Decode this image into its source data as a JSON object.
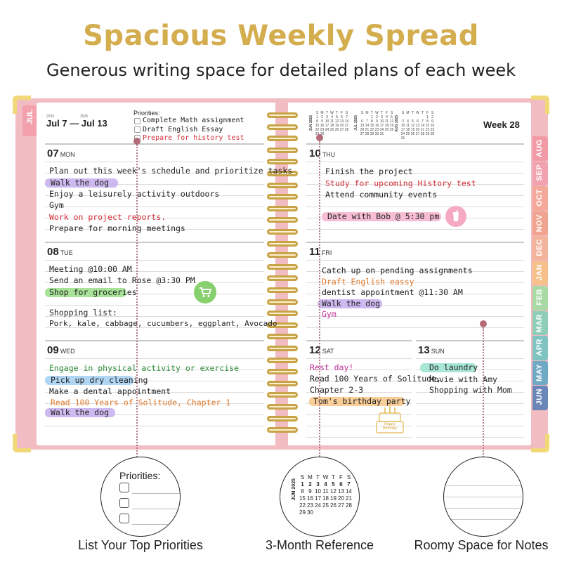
{
  "headline": "Spacious Weekly Spread",
  "subheadline": "Generous writing space for detailed plans of each week",
  "left_page": {
    "side_tab": "JUL",
    "year_a": "2025",
    "year_b": "2025",
    "date_range": "Jul 7 — Jul 13",
    "priorities": {
      "title": "Priorities:",
      "items": [
        "Complete Math assignment",
        "Draft English Essay",
        "Prepare for history test"
      ]
    },
    "days": [
      {
        "num": "07",
        "dow": "MON",
        "entries": [
          "Plan out this week's schedule and prioritize tasks",
          "Walk the dog",
          "Enjoy a leisurely activity outdoors",
          "Gym",
          "Work on project reports.",
          "Prepare for morning meetings"
        ]
      },
      {
        "num": "08",
        "dow": "TUE",
        "entries": [
          "Meeting @10:00 AM",
          "Send an email to Rose @3:30 PM",
          "Shop for groceries",
          "Shopping list:",
          "Pork, kale, cabbage, cucumbers, eggplant, Avocado"
        ]
      },
      {
        "num": "09",
        "dow": "WED",
        "entries": [
          "Engage in physical activity or exercise",
          "Pick up dry cleaning",
          "Make a dental appointment",
          "Read 100 Years of Solitude, Chapter 1",
          "Walk the dog"
        ]
      }
    ]
  },
  "right_page": {
    "week_label": "Week 28",
    "mini_calendars": [
      {
        "label": "JUN 2025",
        "head": [
          "S",
          "M",
          "T",
          "W",
          "T",
          "F",
          "S"
        ],
        "days": [
          "1",
          "2",
          "3",
          "4",
          "5",
          "6",
          "7",
          "8",
          "9",
          "10",
          "11",
          "12",
          "13",
          "14",
          "15",
          "16",
          "17",
          "18",
          "19",
          "20",
          "21",
          "22",
          "23",
          "24",
          "25",
          "26",
          "27",
          "28",
          "29",
          "30"
        ]
      },
      {
        "label": "JUL 2025",
        "head": [
          "S",
          "M",
          "T",
          "W",
          "T",
          "F",
          "S"
        ],
        "days": [
          "",
          "",
          "1",
          "2",
          "3",
          "4",
          "5",
          "6",
          "7",
          "8",
          "9",
          "10",
          "11",
          "12",
          "13",
          "14",
          "15",
          "16",
          "17",
          "18",
          "19",
          "20",
          "21",
          "22",
          "23",
          "24",
          "25",
          "26",
          "27",
          "28",
          "29",
          "30",
          "31"
        ]
      },
      {
        "label": "AUG 2025",
        "head": [
          "S",
          "M",
          "T",
          "W",
          "T",
          "F",
          "S"
        ],
        "days": [
          "",
          "",
          "",
          "",
          "",
          "1",
          "2",
          "3",
          "4",
          "5",
          "6",
          "7",
          "8",
          "9",
          "10",
          "11",
          "12",
          "13",
          "14",
          "15",
          "16",
          "17",
          "18",
          "19",
          "20",
          "21",
          "22",
          "23",
          "24",
          "25",
          "26",
          "27",
          "28",
          "29",
          "30",
          "31"
        ]
      }
    ],
    "days": [
      {
        "num": "10",
        "dow": "THU",
        "entries": [
          "Finish the project",
          "Study for upcoming History test",
          "Attend community events",
          "Date with Bob @ 5:30 pm"
        ]
      },
      {
        "num": "11",
        "dow": "FRI",
        "entries": [
          "Catch up on pending assignments",
          "Draft English eassy",
          "dentist appointment @11:30 AM",
          "Walk the dog",
          "Gym"
        ]
      },
      {
        "num": "12",
        "dow": "SAT",
        "entries": [
          "Rest day!",
          "Read 100 Years of Solitude,",
          "Chapter 2-3",
          "Tom's birthday party"
        ]
      },
      {
        "num": "13",
        "dow": "SUN",
        "entries": [
          "Do laundry",
          "Movie with Amy",
          "Shopping with Mom"
        ]
      }
    ],
    "cake_text": "Happy Birthday"
  },
  "month_tabs": [
    {
      "label": "AUG",
      "color": "#f29aa6"
    },
    {
      "label": "SEP",
      "color": "#f0a2b0"
    },
    {
      "label": "OCT",
      "color": "#f4a89a"
    },
    {
      "label": "NOV",
      "color": "#f0a48f"
    },
    {
      "label": "DEC",
      "color": "#f3b39a"
    },
    {
      "label": "JAN",
      "color": "#f6c089"
    },
    {
      "label": "FEB",
      "color": "#a9d9a4"
    },
    {
      "label": "MAR",
      "color": "#8ecdb8"
    },
    {
      "label": "APR",
      "color": "#7fc4c0"
    },
    {
      "label": "MAY",
      "color": "#6fa9c4"
    },
    {
      "label": "JUN",
      "color": "#6b86b8"
    }
  ],
  "features": [
    {
      "caption": "List Your Top Priorities",
      "zoom_title": "Priorities:"
    },
    {
      "caption": "3-Month Reference",
      "zoom_label": "JUN 2025",
      "zoom_head": [
        "S",
        "M",
        "T",
        "W",
        "T",
        "F",
        "S"
      ],
      "zoom_rows": [
        [
          "1",
          "2",
          "3",
          "4",
          "5",
          "6",
          "7"
        ],
        [
          "8",
          "9",
          "10",
          "11",
          "12",
          "13",
          "14"
        ],
        [
          "15",
          "16",
          "17",
          "18",
          "19",
          "20",
          "21"
        ],
        [
          "22",
          "23",
          "24",
          "25",
          "26",
          "27",
          "28"
        ],
        [
          "29",
          "30",
          "",
          "",
          "",
          "",
          ""
        ]
      ]
    },
    {
      "caption": "Roomy Space for Notes"
    }
  ],
  "colors": {
    "headline_gold": "#d4ad4f",
    "cover_pink": "#f2bcc3",
    "spiral_gold": "#c9a347",
    "ink_red": "#d4303a",
    "ink_orange": "#e07a2c",
    "ink_green": "#2e8b3a",
    "ink_magenta": "#c4309a",
    "hl_purple": "#c9b3ee",
    "hl_green": "#9fe08e",
    "hl_blue": "#a9d2f2",
    "hl_pink": "#f6b6cf",
    "hl_orange": "#f8c98d",
    "hl_teal": "#9fe3d2"
  }
}
